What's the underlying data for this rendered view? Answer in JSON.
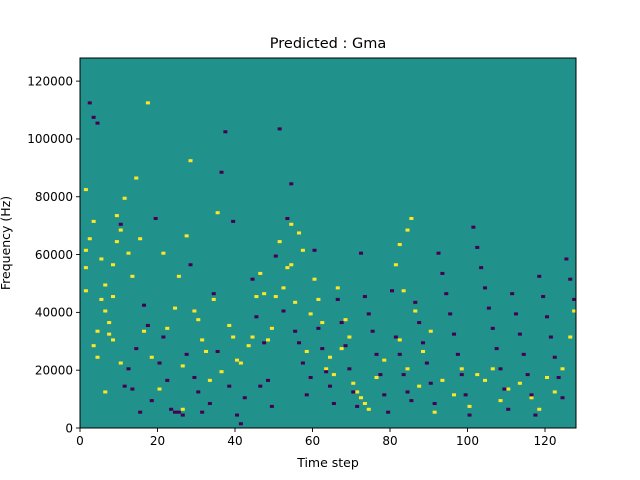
{
  "chart_data": {
    "type": "heatmap",
    "title": "Predicted : Gma",
    "xlabel": "Time step",
    "ylabel": "Frequency (Hz)",
    "xlim": [
      0,
      128
    ],
    "ylim": [
      0,
      128000
    ],
    "x_ticks": [
      "0",
      "20",
      "40",
      "60",
      "80",
      "100",
      "120"
    ],
    "y_ticks": [
      "0",
      "20000",
      "40000",
      "60000",
      "80000",
      "100000",
      "120000"
    ],
    "x_tick_values": [
      0,
      20,
      40,
      60,
      80,
      100,
      120
    ],
    "y_tick_values": [
      0,
      20000,
      40000,
      60000,
      80000,
      100000,
      120000
    ],
    "grid": false,
    "legend": "none",
    "colormap": "viridis",
    "colors": {
      "background_class": "#21918c",
      "high_class": "#fde725",
      "low_class": "#440154"
    },
    "dominant_class": "background_class",
    "bins": {
      "time_steps": 128,
      "frequency_bins": 128,
      "frequency_bin_width_hz": 1000
    },
    "yellow_cells": [
      [
        1,
        47
      ],
      [
        1,
        55
      ],
      [
        1,
        61
      ],
      [
        1,
        82
      ],
      [
        2,
        65
      ],
      [
        3,
        71
      ],
      [
        3,
        28
      ],
      [
        4,
        24
      ],
      [
        4,
        33
      ],
      [
        5,
        58
      ],
      [
        5,
        44
      ],
      [
        6,
        49
      ],
      [
        6,
        40
      ],
      [
        6,
        12
      ],
      [
        7,
        36
      ],
      [
        7,
        32
      ],
      [
        8,
        56
      ],
      [
        8,
        45
      ],
      [
        8,
        30
      ],
      [
        9,
        73
      ],
      [
        9,
        64
      ],
      [
        10,
        68
      ],
      [
        10,
        22
      ],
      [
        11,
        79
      ],
      [
        12,
        60
      ],
      [
        13,
        52
      ],
      [
        14,
        86
      ],
      [
        15,
        65
      ],
      [
        16,
        33
      ],
      [
        17,
        112
      ],
      [
        18,
        24
      ],
      [
        20,
        13
      ],
      [
        21,
        60
      ],
      [
        22,
        34
      ],
      [
        24,
        41
      ],
      [
        25,
        52
      ],
      [
        26,
        6
      ],
      [
        26,
        21
      ],
      [
        27,
        66
      ],
      [
        28,
        92
      ],
      [
        29,
        40
      ],
      [
        30,
        37
      ],
      [
        31,
        30
      ],
      [
        32,
        26
      ],
      [
        33,
        16
      ],
      [
        34,
        44
      ],
      [
        35,
        74
      ],
      [
        36,
        19
      ],
      [
        38,
        35
      ],
      [
        39,
        31
      ],
      [
        40,
        23
      ],
      [
        41,
        22
      ],
      [
        43,
        28
      ],
      [
        44,
        31
      ],
      [
        45,
        45
      ],
      [
        46,
        53
      ],
      [
        47,
        46
      ],
      [
        48,
        30
      ],
      [
        49,
        34
      ],
      [
        50,
        45
      ],
      [
        51,
        64
      ],
      [
        52,
        48
      ],
      [
        53,
        55
      ],
      [
        54,
        56
      ],
      [
        54,
        70
      ],
      [
        55,
        43
      ],
      [
        56,
        67
      ],
      [
        57,
        61
      ],
      [
        58,
        26
      ],
      [
        59,
        39
      ],
      [
        60,
        51
      ],
      [
        61,
        44
      ],
      [
        62,
        36
      ],
      [
        63,
        20
      ],
      [
        64,
        24
      ],
      [
        65,
        18
      ],
      [
        66,
        48
      ],
      [
        67,
        27
      ],
      [
        68,
        37
      ],
      [
        69,
        31
      ],
      [
        70,
        15
      ],
      [
        71,
        12
      ],
      [
        72,
        10
      ],
      [
        73,
        8
      ],
      [
        74,
        6
      ],
      [
        76,
        17
      ],
      [
        78,
        23
      ],
      [
        81,
        56
      ],
      [
        82,
        63
      ],
      [
        82,
        30
      ],
      [
        83,
        47
      ],
      [
        84,
        68
      ],
      [
        84,
        20
      ],
      [
        85,
        72
      ],
      [
        86,
        40
      ],
      [
        87,
        14
      ],
      [
        88,
        26
      ],
      [
        90,
        33
      ],
      [
        91,
        5
      ],
      [
        93,
        16
      ],
      [
        96,
        11
      ],
      [
        98,
        20
      ],
      [
        100,
        7
      ],
      [
        102,
        18
      ],
      [
        104,
        16
      ],
      [
        106,
        20
      ],
      [
        108,
        9
      ],
      [
        110,
        13
      ],
      [
        113,
        15
      ],
      [
        116,
        10
      ],
      [
        118,
        6
      ],
      [
        120,
        17
      ],
      [
        122,
        12
      ],
      [
        124,
        20
      ],
      [
        126,
        31
      ],
      [
        127,
        40
      ]
    ],
    "purple_cells": [
      [
        2,
        112
      ],
      [
        3,
        107
      ],
      [
        4,
        105
      ],
      [
        10,
        70
      ],
      [
        11,
        14
      ],
      [
        12,
        20
      ],
      [
        13,
        13
      ],
      [
        14,
        27
      ],
      [
        15,
        5
      ],
      [
        16,
        42
      ],
      [
        17,
        35
      ],
      [
        18,
        9
      ],
      [
        19,
        72
      ],
      [
        20,
        22
      ],
      [
        21,
        31
      ],
      [
        22,
        16
      ],
      [
        23,
        6
      ],
      [
        24,
        5
      ],
      [
        25,
        5
      ],
      [
        26,
        4
      ],
      [
        27,
        25
      ],
      [
        28,
        56
      ],
      [
        29,
        17
      ],
      [
        30,
        12
      ],
      [
        31,
        5
      ],
      [
        33,
        8
      ],
      [
        34,
        46
      ],
      [
        35,
        26
      ],
      [
        36,
        88
      ],
      [
        37,
        102
      ],
      [
        38,
        14
      ],
      [
        39,
        71
      ],
      [
        40,
        4
      ],
      [
        41,
        1
      ],
      [
        42,
        10
      ],
      [
        44,
        51
      ],
      [
        45,
        38
      ],
      [
        46,
        14
      ],
      [
        47,
        29
      ],
      [
        48,
        16
      ],
      [
        49,
        7
      ],
      [
        50,
        59
      ],
      [
        51,
        103
      ],
      [
        52,
        40
      ],
      [
        53,
        72
      ],
      [
        54,
        84
      ],
      [
        55,
        33
      ],
      [
        56,
        29
      ],
      [
        57,
        22
      ],
      [
        58,
        11
      ],
      [
        59,
        17
      ],
      [
        60,
        61
      ],
      [
        61,
        34
      ],
      [
        62,
        27
      ],
      [
        63,
        19
      ],
      [
        64,
        14
      ],
      [
        65,
        8
      ],
      [
        66,
        44
      ],
      [
        67,
        36
      ],
      [
        68,
        28
      ],
      [
        69,
        20
      ],
      [
        70,
        12
      ],
      [
        71,
        7
      ],
      [
        72,
        60
      ],
      [
        73,
        45
      ],
      [
        74,
        39
      ],
      [
        75,
        33
      ],
      [
        76,
        25
      ],
      [
        77,
        18
      ],
      [
        78,
        11
      ],
      [
        79,
        5
      ],
      [
        80,
        47
      ],
      [
        81,
        31
      ],
      [
        82,
        25
      ],
      [
        83,
        18
      ],
      [
        84,
        12
      ],
      [
        85,
        9
      ],
      [
        86,
        43
      ],
      [
        87,
        36
      ],
      [
        88,
        29
      ],
      [
        89,
        22
      ],
      [
        90,
        15
      ],
      [
        91,
        8
      ],
      [
        92,
        60
      ],
      [
        93,
        53
      ],
      [
        94,
        46
      ],
      [
        95,
        39
      ],
      [
        96,
        32
      ],
      [
        97,
        25
      ],
      [
        98,
        18
      ],
      [
        99,
        11
      ],
      [
        100,
        4
      ],
      [
        101,
        69
      ],
      [
        102,
        62
      ],
      [
        103,
        55
      ],
      [
        104,
        48
      ],
      [
        105,
        41
      ],
      [
        106,
        34
      ],
      [
        107,
        27
      ],
      [
        108,
        20
      ],
      [
        109,
        13
      ],
      [
        110,
        6
      ],
      [
        111,
        46
      ],
      [
        112,
        39
      ],
      [
        113,
        32
      ],
      [
        114,
        25
      ],
      [
        115,
        18
      ],
      [
        116,
        11
      ],
      [
        117,
        4
      ],
      [
        118,
        52
      ],
      [
        119,
        45
      ],
      [
        120,
        38
      ],
      [
        121,
        31
      ],
      [
        122,
        24
      ],
      [
        123,
        17
      ],
      [
        124,
        10
      ],
      [
        125,
        58
      ],
      [
        126,
        51
      ],
      [
        127,
        44
      ]
    ]
  }
}
